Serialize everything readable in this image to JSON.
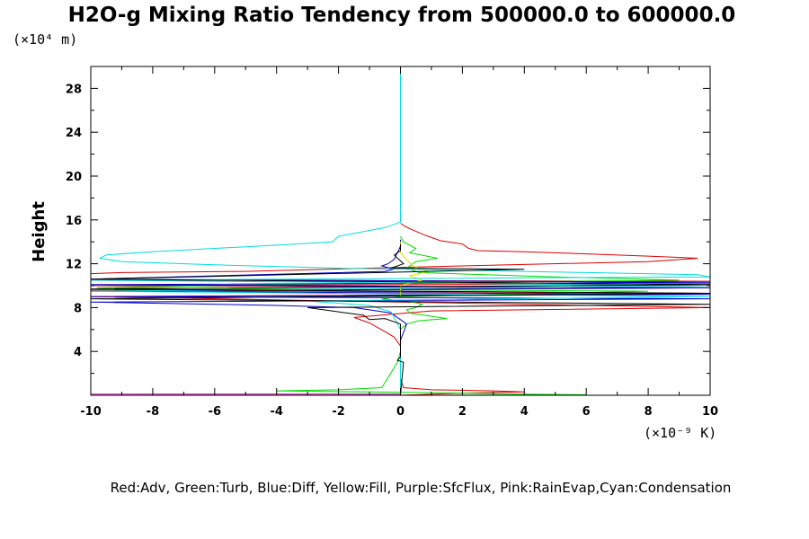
{
  "chart_data": {
    "type": "line",
    "title": "H2O-g Mixing Ratio Tendency from 500000.0 to 600000.0",
    "ylabel": "Height",
    "y_unit_label": "(×10⁴ m)",
    "x_unit_label": "(×10⁻⁹ K)",
    "xlim": [
      -10,
      10
    ],
    "ylim": [
      0,
      30
    ],
    "x_ticks": [
      -10,
      -8,
      -6,
      -4,
      -2,
      0,
      2,
      4,
      6,
      8,
      10
    ],
    "y_ticks": [
      4,
      8,
      12,
      16,
      20,
      24,
      28
    ],
    "legend_text": "Red:Adv, Green:Turb, Blue:Diff, Yellow:Fill, Purple:SfcFlux, Pink:RainEvap,Cyan:Condensation",
    "grid": false,
    "series": [
      {
        "name": "Adv",
        "color": "#dd0000",
        "x": [
          0,
          0.1,
          0.3,
          0.8,
          1.3,
          2.0,
          2.2,
          2.5,
          4.0,
          6.0,
          8.0,
          9.6,
          8.0,
          2.0,
          -1.0,
          -5.0,
          -9.0,
          -10.0,
          -10.0,
          -10.0,
          10.0,
          10.0,
          -10.0,
          10.0,
          -10.0,
          10.0,
          -10.0,
          10.0,
          1.0,
          -1.5,
          -1.0,
          -0.5,
          -0.2,
          0,
          0,
          0,
          0.1,
          1.0,
          3.0,
          4.0,
          2.0,
          0
        ],
        "y": [
          15.7,
          15.5,
          15.2,
          14.6,
          14.1,
          13.8,
          13.4,
          13.2,
          13.1,
          12.9,
          12.7,
          12.5,
          12.2,
          11.8,
          11.6,
          11.3,
          11.2,
          11.1,
          10.9,
          10.5,
          10.4,
          10.2,
          10.0,
          9.8,
          9.6,
          9.3,
          9.0,
          8.0,
          7.7,
          7.1,
          6.6,
          5.8,
          5.3,
          4.5,
          3.0,
          1.5,
          0.7,
          0.5,
          0.4,
          0.3,
          0.2,
          0.0
        ]
      },
      {
        "name": "Turb",
        "color": "#00dd00",
        "x": [
          0,
          0.1,
          0.5,
          0.3,
          1.2,
          0.5,
          0.2,
          0.6,
          5.0,
          9.0,
          -2.0,
          -6.0,
          -9.8,
          8.0,
          3.0,
          0.0,
          -0.6,
          0.4,
          0.7,
          0.5,
          0.2,
          0.3,
          1.5,
          0.6,
          0.2,
          0,
          0,
          -0.1,
          -0.6,
          -2.0,
          -4.0,
          -1.0,
          2.0,
          4.0,
          6.0,
          0
        ],
        "y": [
          14.5,
          14.0,
          13.4,
          13.0,
          12.5,
          12.2,
          11.6,
          11.2,
          10.8,
          10.5,
          10.2,
          10.0,
          9.8,
          9.5,
          9.2,
          9.0,
          8.8,
          8.5,
          8.3,
          8.0,
          7.8,
          7.5,
          7.0,
          6.8,
          6.5,
          6.0,
          4.0,
          3.0,
          0.7,
          0.5,
          0.4,
          0.3,
          0.2,
          0.1,
          0.05,
          0.0
        ]
      },
      {
        "name": "Diff",
        "color": "#0000cc",
        "x": [
          0,
          0,
          -0.1,
          -0.2,
          -0.4,
          -0.6,
          -0.2,
          -0.5,
          -10.0,
          10.0,
          -10.0,
          10.0,
          -10.0,
          10.0,
          -10.0,
          10.0,
          -10.0,
          -4.0,
          -1.5,
          -0.3,
          0.2,
          0,
          0,
          0,
          0,
          0
        ],
        "y": [
          14.2,
          13.6,
          13.0,
          12.4,
          12.0,
          11.8,
          11.5,
          11.3,
          10.6,
          10.3,
          10.1,
          9.8,
          9.5,
          9.2,
          9.0,
          8.8,
          8.5,
          8.2,
          8.0,
          7.5,
          6.5,
          5.0,
          3.0,
          1.0,
          0.3,
          0.0
        ]
      },
      {
        "name": "Fill",
        "color": "#dddd00",
        "x": [
          0,
          0,
          0.4,
          0.9,
          0.3,
          0.7,
          0,
          0
        ],
        "y": [
          14.0,
          13.0,
          11.8,
          11.3,
          10.9,
          10.5,
          10.0,
          9.0
        ]
      },
      {
        "name": "SfcFlux",
        "color": "#aa00aa",
        "x": [
          -10.0,
          0
        ],
        "y": [
          0.1,
          0.1
        ]
      },
      {
        "name": "RainEvap",
        "color": "#ff66cc",
        "x": [
          -10.0,
          -6.0,
          -2.0,
          0
        ],
        "y": [
          0.05,
          0.04,
          0.03,
          0.02
        ]
      },
      {
        "name": "Condensation",
        "color": "#00dddd",
        "x": [
          0,
          0,
          0,
          0,
          -0.5,
          -2.0,
          -2.2,
          -4.0,
          -6.0,
          -8.0,
          -9.5,
          -9.7,
          -9.0,
          -6.0,
          -2.0,
          2.0,
          6.0,
          9.6,
          10.0,
          -10.0,
          10.0,
          -10.0,
          10.0,
          -3.0,
          -1.0,
          -0.3,
          0,
          0,
          0,
          0
        ],
        "y": [
          30.0,
          25.0,
          20.0,
          15.8,
          15.3,
          14.5,
          14.0,
          13.7,
          13.4,
          13.1,
          12.8,
          12.5,
          12.2,
          11.9,
          11.6,
          11.4,
          11.2,
          11.0,
          10.8,
          10.5,
          10.0,
          9.5,
          9.0,
          8.6,
          8.2,
          7.6,
          6.0,
          3.0,
          1.0,
          0.0
        ]
      },
      {
        "name": "",
        "color": "#000000",
        "x": [
          0,
          0,
          -0.2,
          0.1,
          -0.3,
          4.0,
          -10.0,
          10.0,
          -10.0,
          10.0,
          -10.0,
          10.0,
          -3.0,
          -1.2,
          -1.0,
          -0.5,
          0,
          0,
          0,
          -0.1,
          0.1,
          0
        ],
        "y": [
          13.8,
          13.2,
          12.8,
          12.0,
          11.6,
          11.5,
          10.6,
          10.1,
          9.7,
          9.3,
          8.8,
          8.3,
          8.0,
          7.3,
          6.9,
          7.0,
          6.5,
          5.0,
          3.5,
          3.2,
          3.0,
          0.0
        ]
      }
    ]
  }
}
